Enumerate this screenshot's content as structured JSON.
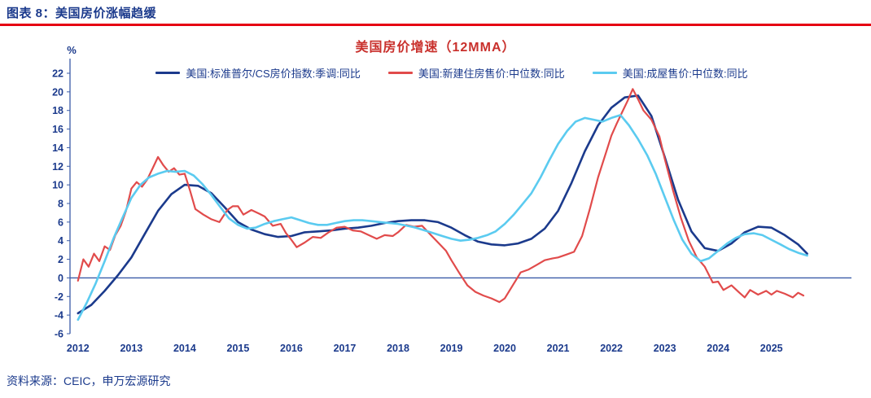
{
  "page": {
    "header_title": "图表 8：美国房价涨幅趋缓",
    "source_note": "资料来源：CEIC，申万宏源研究"
  },
  "colors": {
    "navy": "#1b3a8c",
    "axis": "#3a5ba8",
    "rule-red": "#e60012",
    "title-red": "#c9302c"
  },
  "chart_data": {
    "type": "line",
    "title": "美国房价增速（12MMA）",
    "y_unit_label": "%",
    "ylim": [
      -6,
      22
    ],
    "xlim": [
      2011.85,
      2026.5
    ],
    "yticks": [
      22,
      20,
      18,
      16,
      14,
      12,
      10,
      8,
      6,
      4,
      2,
      0,
      -2,
      -4,
      -6
    ],
    "xticks": [
      2012,
      2013,
      2014,
      2015,
      2016,
      2017,
      2018,
      2019,
      2020,
      2021,
      2022,
      2023,
      2024,
      2025
    ],
    "zero_line": 0,
    "grid": false,
    "legend_position": "top",
    "series": [
      {
        "id": "sp-cs-hpi",
        "name": "美国:标准普尔/CS房价指数:季调:同比",
        "color": "#1b3a8c",
        "width": 2.6,
        "x": [
          2012,
          2012.25,
          2012.5,
          2012.75,
          2013,
          2013.25,
          2013.5,
          2013.75,
          2014,
          2014.25,
          2014.5,
          2014.75,
          2015,
          2015.25,
          2015.5,
          2015.75,
          2016,
          2016.25,
          2016.5,
          2016.75,
          2017,
          2017.25,
          2017.5,
          2017.75,
          2018,
          2018.25,
          2018.5,
          2018.75,
          2019,
          2019.25,
          2019.5,
          2019.75,
          2020,
          2020.25,
          2020.5,
          2020.75,
          2021,
          2021.25,
          2021.5,
          2021.75,
          2022,
          2022.25,
          2022.5,
          2022.75,
          2023,
          2023.25,
          2023.5,
          2023.75,
          2024,
          2024.25,
          2024.5,
          2024.75,
          2025,
          2025.25,
          2025.5,
          2025.67
        ],
        "y": [
          -3.8,
          -2.9,
          -1.4,
          0.3,
          2.2,
          4.7,
          7.2,
          9.0,
          10.0,
          9.9,
          9.1,
          7.6,
          6.0,
          5.2,
          4.7,
          4.4,
          4.5,
          4.9,
          5.0,
          5.1,
          5.3,
          5.4,
          5.6,
          5.9,
          6.1,
          6.2,
          6.2,
          6.0,
          5.4,
          4.6,
          3.9,
          3.6,
          3.5,
          3.7,
          4.2,
          5.3,
          7.2,
          10.2,
          13.6,
          16.4,
          18.3,
          19.4,
          19.6,
          17.4,
          13.0,
          8.4,
          5.0,
          3.2,
          2.9,
          3.7,
          4.9,
          5.5,
          5.4,
          4.6,
          3.6,
          2.6
        ]
      },
      {
        "id": "new-home-median",
        "name": "美国:新建住房售价:中位数:同比",
        "color": "#e14b4b",
        "width": 2.2,
        "x": [
          2012.0,
          2012.1,
          2012.2,
          2012.3,
          2012.4,
          2012.5,
          2012.6,
          2012.7,
          2012.8,
          2012.9,
          2013.0,
          2013.1,
          2013.2,
          2013.3,
          2013.4,
          2013.5,
          2013.6,
          2013.7,
          2013.8,
          2013.9,
          2014.0,
          2014.1,
          2014.2,
          2014.35,
          2014.5,
          2014.65,
          2014.8,
          2014.9,
          2015.0,
          2015.1,
          2015.25,
          2015.4,
          2015.5,
          2015.65,
          2015.8,
          2015.9,
          2016.0,
          2016.1,
          2016.25,
          2016.4,
          2016.55,
          2016.7,
          2016.85,
          2017.0,
          2017.15,
          2017.3,
          2017.45,
          2017.6,
          2017.75,
          2017.9,
          2018.0,
          2018.15,
          2018.3,
          2018.45,
          2018.6,
          2018.75,
          2018.9,
          2019.0,
          2019.15,
          2019.3,
          2019.45,
          2019.6,
          2019.75,
          2019.9,
          2020.0,
          2020.15,
          2020.3,
          2020.45,
          2020.6,
          2020.75,
          2020.9,
          2021.0,
          2021.15,
          2021.3,
          2021.45,
          2021.6,
          2021.75,
          2021.9,
          2022.0,
          2022.1,
          2022.2,
          2022.3,
          2022.4,
          2022.5,
          2022.6,
          2022.75,
          2022.9,
          2023.0,
          2023.15,
          2023.3,
          2023.45,
          2023.6,
          2023.75,
          2023.9,
          2024.0,
          2024.1,
          2024.25,
          2024.4,
          2024.5,
          2024.6,
          2024.75,
          2024.9,
          2025.0,
          2025.1,
          2025.25,
          2025.4,
          2025.5,
          2025.6
        ],
        "y": [
          -0.3,
          2.0,
          1.2,
          2.6,
          1.8,
          3.4,
          3.0,
          4.6,
          5.6,
          7.2,
          9.6,
          10.3,
          9.8,
          10.6,
          11.8,
          13.0,
          12.1,
          11.4,
          11.8,
          11.1,
          11.2,
          9.4,
          7.4,
          6.8,
          6.3,
          6.0,
          7.3,
          7.7,
          7.7,
          6.8,
          7.3,
          6.9,
          6.6,
          5.6,
          5.8,
          4.8,
          4.1,
          3.3,
          3.8,
          4.4,
          4.3,
          4.9,
          5.4,
          5.5,
          5.1,
          5.0,
          4.6,
          4.2,
          4.6,
          4.5,
          4.9,
          5.7,
          5.5,
          5.6,
          4.7,
          3.8,
          2.9,
          1.9,
          0.5,
          -0.8,
          -1.5,
          -1.9,
          -2.2,
          -2.6,
          -2.2,
          -0.8,
          0.6,
          0.9,
          1.4,
          1.9,
          2.1,
          2.2,
          2.5,
          2.8,
          4.5,
          7.5,
          10.8,
          13.5,
          15.3,
          16.6,
          17.8,
          19.0,
          20.3,
          19.2,
          18.0,
          17.0,
          15.2,
          12.8,
          9.5,
          6.5,
          4.0,
          2.2,
          1.2,
          -0.5,
          -0.4,
          -1.3,
          -0.8,
          -1.6,
          -2.1,
          -1.3,
          -1.8,
          -1.4,
          -1.8,
          -1.4,
          -1.7,
          -2.1,
          -1.6,
          -1.9
        ]
      },
      {
        "id": "existing-home-median",
        "name": "美国:成屋售价:中位数:同比",
        "color": "#5bcbf0",
        "width": 2.6,
        "x": [
          2012.0,
          2012.17,
          2012.33,
          2012.5,
          2012.67,
          2012.83,
          2013.0,
          2013.17,
          2013.33,
          2013.5,
          2013.67,
          2013.83,
          2014.0,
          2014.17,
          2014.33,
          2014.5,
          2014.67,
          2014.83,
          2015.0,
          2015.17,
          2015.33,
          2015.5,
          2015.67,
          2015.83,
          2016.0,
          2016.17,
          2016.33,
          2016.5,
          2016.67,
          2016.83,
          2017.0,
          2017.17,
          2017.33,
          2017.5,
          2017.67,
          2017.83,
          2018.0,
          2018.17,
          2018.33,
          2018.5,
          2018.67,
          2018.83,
          2019.0,
          2019.17,
          2019.33,
          2019.5,
          2019.67,
          2019.83,
          2020.0,
          2020.17,
          2020.33,
          2020.5,
          2020.67,
          2020.83,
          2021.0,
          2021.17,
          2021.33,
          2021.5,
          2021.67,
          2021.83,
          2022.0,
          2022.17,
          2022.33,
          2022.5,
          2022.67,
          2022.83,
          2023.0,
          2023.17,
          2023.33,
          2023.5,
          2023.67,
          2023.83,
          2024.0,
          2024.17,
          2024.33,
          2024.5,
          2024.67,
          2024.83,
          2025.0,
          2025.17,
          2025.33,
          2025.5,
          2025.67
        ],
        "y": [
          -4.5,
          -2.6,
          -0.6,
          1.8,
          4.3,
          6.4,
          8.6,
          10.0,
          10.8,
          11.2,
          11.5,
          11.4,
          11.5,
          11.0,
          10.1,
          8.9,
          7.6,
          6.4,
          5.7,
          5.3,
          5.4,
          5.8,
          6.1,
          6.3,
          6.5,
          6.2,
          5.9,
          5.7,
          5.7,
          5.9,
          6.1,
          6.2,
          6.2,
          6.1,
          6.0,
          5.9,
          5.8,
          5.6,
          5.4,
          5.1,
          4.8,
          4.5,
          4.2,
          4.0,
          4.1,
          4.3,
          4.6,
          5.0,
          5.8,
          6.8,
          7.9,
          9.1,
          10.8,
          12.6,
          14.4,
          15.8,
          16.8,
          17.2,
          17.0,
          16.8,
          17.2,
          17.5,
          16.4,
          14.9,
          13.2,
          11.2,
          8.7,
          6.2,
          4.1,
          2.6,
          1.8,
          2.1,
          2.9,
          3.7,
          4.3,
          4.7,
          4.8,
          4.6,
          4.1,
          3.6,
          3.1,
          2.7,
          2.4
        ]
      }
    ]
  }
}
